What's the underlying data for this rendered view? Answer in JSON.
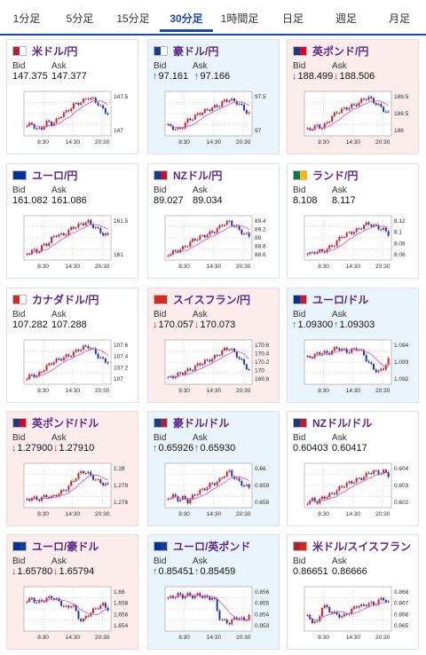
{
  "tabs": [
    "1分足",
    "5分足",
    "15分足",
    "30分足",
    "1時間足",
    "日足",
    "週足",
    "月足"
  ],
  "active_tab": 3,
  "labels": {
    "bid": "Bid",
    "ask": "Ask"
  },
  "x_ticks": [
    "8:30",
    "14:30",
    "20:30"
  ],
  "cards": [
    {
      "name": "米ドル/円",
      "flag": [
        "#b22234",
        "#ffffff"
      ],
      "trend": "none",
      "bid": "147.375",
      "ask": "147.377",
      "yticks": [
        "147.5",
        "147"
      ],
      "shape": [
        0.2,
        0.25,
        0.1,
        0.15,
        0.3,
        0.25,
        0.35,
        0.5,
        0.55,
        0.7,
        0.75,
        0.8,
        0.9,
        0.85,
        0.75,
        0.6,
        0.5
      ]
    },
    {
      "name": "豪ドル/円",
      "flag": [
        "#1a3a8a",
        "#ffffff"
      ],
      "trend": "up",
      "bid": "97.161",
      "ask": "97.166",
      "yticks": [
        "97.5",
        "97"
      ],
      "shape": [
        0.2,
        0.15,
        0.1,
        0.2,
        0.35,
        0.4,
        0.5,
        0.55,
        0.6,
        0.65,
        0.7,
        0.8,
        0.85,
        0.8,
        0.75,
        0.6,
        0.5
      ]
    },
    {
      "name": "英ポンド/円",
      "flag": [
        "#1a3a8a",
        "#c8102e"
      ],
      "trend": "down",
      "bid": "188.499",
      "ask": "188.506",
      "yticks": [
        "189.5",
        "188.5",
        "188"
      ],
      "shape": [
        0.1,
        0.15,
        0.2,
        0.15,
        0.3,
        0.45,
        0.55,
        0.6,
        0.65,
        0.7,
        0.75,
        0.85,
        0.9,
        0.8,
        0.7,
        0.6,
        0.5
      ]
    },
    {
      "name": "ユーロ/円",
      "flag": [
        "#003399",
        "#003399"
      ],
      "trend": "none",
      "bid": "161.082",
      "ask": "161.086",
      "yticks": [
        "161.5",
        "161"
      ],
      "shape": [
        0.1,
        0.2,
        0.15,
        0.3,
        0.35,
        0.5,
        0.6,
        0.55,
        0.65,
        0.75,
        0.8,
        0.85,
        0.9,
        0.8,
        0.7,
        0.6,
        0.55
      ]
    },
    {
      "name": "NZドル/円",
      "flag": [
        "#1a3a8a",
        "#c8102e"
      ],
      "trend": "none",
      "bid": "89.027",
      "ask": "89.034",
      "yticks": [
        "89.4",
        "89.2",
        "89",
        "88.8",
        "88.6"
      ],
      "shape": [
        0.1,
        0.15,
        0.2,
        0.25,
        0.35,
        0.45,
        0.5,
        0.55,
        0.6,
        0.65,
        0.75,
        0.85,
        0.9,
        0.8,
        0.7,
        0.6,
        0.55
      ]
    },
    {
      "name": "ランド/円",
      "flag": [
        "#007a4d",
        "#ffb612"
      ],
      "trend": "none",
      "bid": "8.108",
      "ask": "8.117",
      "yticks": [
        "8.12",
        "8.1",
        "8.08",
        "8.06"
      ],
      "shape": [
        0.15,
        0.1,
        0.2,
        0.15,
        0.25,
        0.3,
        0.45,
        0.55,
        0.6,
        0.65,
        0.7,
        0.8,
        0.85,
        0.8,
        0.75,
        0.7,
        0.6
      ]
    },
    {
      "name": "カナダドル/円",
      "flag": [
        "#d52b1e",
        "#ffffff"
      ],
      "trend": "none",
      "bid": "107.282",
      "ask": "107.288",
      "yticks": [
        "107.6",
        "107.4",
        "107.2",
        "107"
      ],
      "shape": [
        0.1,
        0.2,
        0.15,
        0.3,
        0.4,
        0.5,
        0.55,
        0.6,
        0.65,
        0.7,
        0.8,
        0.85,
        0.9,
        0.8,
        0.65,
        0.55,
        0.5
      ]
    },
    {
      "name": "スイスフラン/円",
      "flag": [
        "#d52b1e",
        "#d52b1e"
      ],
      "trend": "down",
      "bid": "170.057",
      "ask": "170.073",
      "yticks": [
        "170.6",
        "170.4",
        "170.2",
        "170",
        "169.8"
      ],
      "shape": [
        0.1,
        0.15,
        0.2,
        0.25,
        0.3,
        0.35,
        0.45,
        0.5,
        0.55,
        0.6,
        0.7,
        0.8,
        0.85,
        0.75,
        0.6,
        0.45,
        0.3
      ]
    },
    {
      "name": "ユーロ/ドル",
      "flag": [
        "#003399",
        "#b22234"
      ],
      "trend": "up",
      "bid": "1.09300",
      "ask": "1.09303",
      "yticks": [
        "1.094",
        "1.093",
        "1.092"
      ],
      "shape": [
        0.6,
        0.65,
        0.7,
        0.75,
        0.7,
        0.8,
        0.85,
        0.8,
        0.75,
        0.8,
        0.85,
        0.7,
        0.5,
        0.35,
        0.25,
        0.35,
        0.55
      ]
    },
    {
      "name": "英ポンド/ドル",
      "flag": [
        "#1a3a8a",
        "#c8102e"
      ],
      "trend": "down",
      "bid": "1.27900",
      "ask": "1.27910",
      "yticks": [
        "1.28",
        "1.278",
        "1.276"
      ],
      "shape": [
        0.15,
        0.2,
        0.15,
        0.2,
        0.25,
        0.2,
        0.3,
        0.35,
        0.45,
        0.6,
        0.75,
        0.85,
        0.8,
        0.7,
        0.6,
        0.55,
        0.5
      ]
    },
    {
      "name": "豪ドル/ドル",
      "flag": [
        "#1a3a8a",
        "#b22234"
      ],
      "trend": "up",
      "bid": "0.65926",
      "ask": "0.65930",
      "yticks": [
        "0.66",
        "0.659",
        "0.658"
      ],
      "shape": [
        0.2,
        0.25,
        0.15,
        0.2,
        0.1,
        0.25,
        0.35,
        0.4,
        0.5,
        0.55,
        0.6,
        0.75,
        0.85,
        0.7,
        0.6,
        0.5,
        0.45
      ]
    },
    {
      "name": "NZドル/ドル",
      "flag": [
        "#1a3a8a",
        "#b22234"
      ],
      "trend": "none",
      "bid": "0.60403",
      "ask": "0.60417",
      "yticks": [
        "0.604",
        "0.603",
        "0.602"
      ],
      "shape": [
        0.1,
        0.15,
        0.1,
        0.2,
        0.25,
        0.3,
        0.4,
        0.5,
        0.55,
        0.6,
        0.65,
        0.7,
        0.8,
        0.85,
        0.8,
        0.85,
        0.75
      ]
    },
    {
      "name": "ユーロ/豪ドル",
      "flag": [
        "#003399",
        "#1a3a8a"
      ],
      "trend": "down",
      "bid": "1.65780",
      "ask": "1.65794",
      "yticks": [
        "1.66",
        "1.658",
        "1.656",
        "1.654"
      ],
      "shape": [
        0.7,
        0.75,
        0.65,
        0.7,
        0.75,
        0.8,
        0.7,
        0.6,
        0.5,
        0.65,
        0.3,
        0.2,
        0.35,
        0.45,
        0.55,
        0.6,
        0.5
      ]
    },
    {
      "name": "ユーロ/英ポンド",
      "flag": [
        "#003399",
        "#1a3a8a"
      ],
      "trend": "up",
      "bid": "0.85451",
      "ask": "0.85459",
      "yticks": [
        "0.856",
        "0.855",
        "0.854",
        "0.853"
      ],
      "shape": [
        0.75,
        0.8,
        0.85,
        0.8,
        0.85,
        0.8,
        0.85,
        0.8,
        0.75,
        0.8,
        0.3,
        0.2,
        0.15,
        0.25,
        0.3,
        0.2,
        0.35
      ]
    },
    {
      "name": "米ドル/スイスフラン",
      "flag": [
        "#b22234",
        "#d52b1e"
      ],
      "trend": "none",
      "bid": "0.86651",
      "ask": "0.86666",
      "yticks": [
        "0.868",
        "0.867",
        "0.866",
        "0.865"
      ],
      "shape": [
        0.3,
        0.2,
        0.15,
        0.6,
        0.5,
        0.4,
        0.35,
        0.3,
        0.4,
        0.5,
        0.6,
        0.55,
        0.65,
        0.6,
        0.7,
        0.75,
        0.65
      ]
    }
  ]
}
